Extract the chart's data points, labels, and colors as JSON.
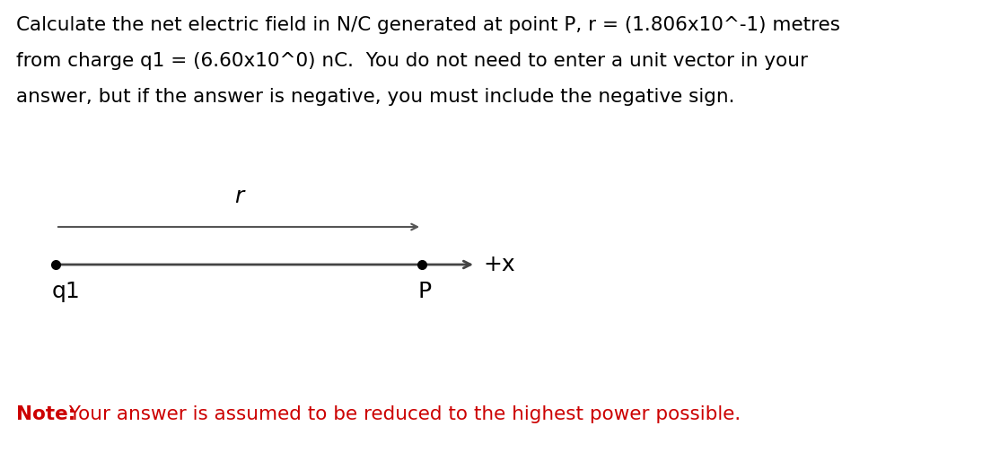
{
  "line1": "Calculate the net electric field in N/C generated at point P, r = (1.806x10^-1) metres",
  "line2": "from charge q1 = (6.60x10^0) nC.  You do not need to enter a unit vector in your",
  "line3": "answer, but if the answer is negative, you must include the negative sign.",
  "note_bold": "Note:",
  "note_regular": " Your answer is assumed to be reduced to the highest power possible.",
  "text_color": "#000000",
  "note_color": "#cc0000",
  "bg_color": "#ffffff",
  "label_r": "r",
  "label_q1": "q1",
  "label_P": "P",
  "label_x": "+x",
  "main_font_size": 15.5,
  "note_font_size": 15.5,
  "diagram_label_font_size": 18
}
